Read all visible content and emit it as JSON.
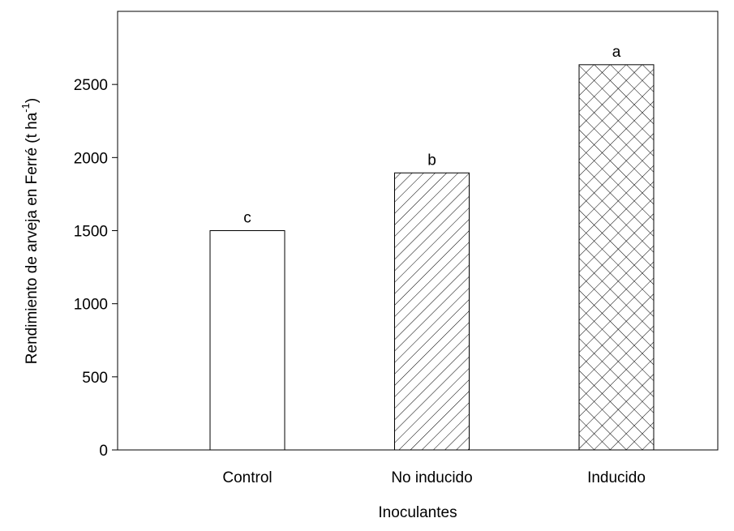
{
  "chart_data": {
    "type": "bar",
    "x_label": "Inoculantes",
    "y_label": "Rendimiento de arveja en Ferré (t ha",
    "y_label_sup": "-1",
    "y_label_end": ")",
    "categories": [
      "Control",
      "No inducido",
      "Inducido"
    ],
    "values": [
      1500,
      1895,
      2635
    ],
    "annotations": [
      "c",
      "b",
      "a"
    ],
    "patterns": [
      "none",
      "diagonal",
      "crosshatch"
    ],
    "color": "#000000",
    "ylim": [
      0,
      3000
    ],
    "yticks": [
      0,
      500,
      1000,
      1500,
      2000,
      2500
    ],
    "grid": false
  }
}
